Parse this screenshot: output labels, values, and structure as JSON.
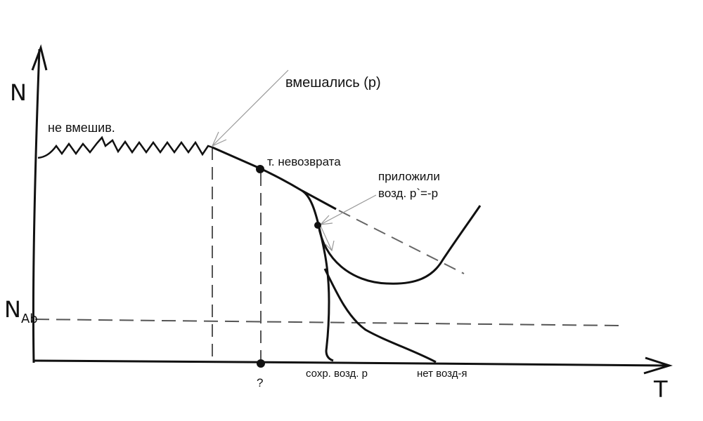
{
  "axes": {
    "y_label": "N",
    "x_label": "T",
    "threshold_label_main": "N",
    "threshold_label_sub": "Ab"
  },
  "labels": {
    "no_intervention": "не вмешив.",
    "intervened": "вмешались (p)",
    "point_of_no_return": "т. невозврата",
    "applied_line1": "приложили",
    "applied_line2": "возд. p`=-p",
    "question": "?",
    "kept_action": "сохр. возд. p",
    "no_action": "нет возд-я"
  },
  "colors": {
    "ink": "#111111",
    "dashed": "#555555",
    "pointer": "#999999"
  }
}
